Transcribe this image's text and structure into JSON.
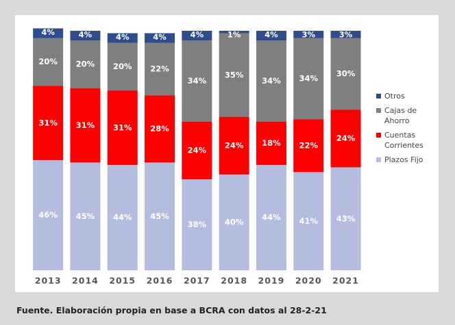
{
  "chart_data": {
    "type": "stacked_bar",
    "categories": [
      "2013",
      "2014",
      "2015",
      "2016",
      "2017",
      "2018",
      "2019",
      "2020",
      "2021"
    ],
    "series": [
      {
        "name": "Plazos Fijo",
        "color": "#b4bde0",
        "values": [
          46,
          45,
          44,
          45,
          38,
          40,
          44,
          41,
          43
        ],
        "value_labels": [
          "46%",
          "45%",
          "44%",
          "45%",
          "38%",
          "40%",
          "44%",
          "41%",
          "43%"
        ]
      },
      {
        "name": "Cuentas Corrientes",
        "color": "#ff0000",
        "values": [
          31,
          31,
          31,
          28,
          24,
          24,
          18,
          22,
          24
        ],
        "value_labels": [
          "31%",
          "31%",
          "31%",
          "28%",
          "24%",
          "24%",
          "18%",
          "22%",
          "24%"
        ]
      },
      {
        "name": "Cajas de Ahorro",
        "color": "#7f7f7f",
        "values": [
          20,
          20,
          20,
          22,
          34,
          35,
          34,
          34,
          30
        ],
        "value_labels": [
          "20%",
          "20%",
          "20%",
          "22%",
          "34%",
          "35%",
          "34%",
          "34%",
          "30%"
        ]
      },
      {
        "name": "Otros",
        "color": "#2e4d8f",
        "values": [
          4,
          4,
          4,
          4,
          4,
          1,
          4,
          3,
          3
        ],
        "value_labels": [
          "4%",
          "4%",
          "4%",
          "4%",
          "4%",
          "1%",
          "4%",
          "3%",
          "3%"
        ]
      }
    ],
    "ylim": [
      0,
      100
    ],
    "source": "Fuente. Elaboración propia en base a BCRA con datos al 28-2-21"
  }
}
